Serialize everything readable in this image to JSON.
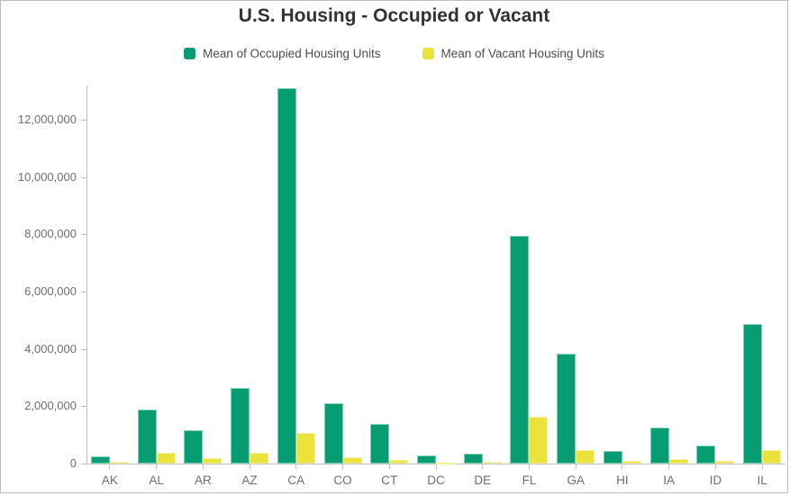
{
  "title": "U.S. Housing - Occupied or Vacant",
  "legend": [
    {
      "label": "Mean of Occupied Housing Units",
      "color": "#089c73"
    },
    {
      "label": "Mean of Vacant Housing Units",
      "color": "#ece23c"
    }
  ],
  "colors": {
    "occupied": "#089c73",
    "occupied_edge": "#7ed0b2",
    "vacant": "#ece23c",
    "vacant_edge": "#f5efa0",
    "axis_line": "#c0c0c0",
    "tick_mark": "#c0c0c0",
    "axis_label": "#6e6e6e",
    "title_text": "#323232",
    "legend_text": "#4c4c4c",
    "frame_border": "#bdbdbd"
  },
  "chart_data": {
    "type": "bar",
    "title": "U.S. Housing - Occupied or Vacant",
    "categories": [
      "AK",
      "AL",
      "AR",
      "AZ",
      "CA",
      "CO",
      "CT",
      "DC",
      "DE",
      "FL",
      "GA",
      "HI",
      "IA",
      "ID",
      "IL"
    ],
    "series": [
      {
        "name": "Mean of Occupied Housing Units",
        "color": "#089c73",
        "values": [
          240000,
          1870000,
          1150000,
          2630000,
          13100000,
          2090000,
          1370000,
          280000,
          330000,
          7950000,
          3820000,
          440000,
          1250000,
          620000,
          4860000
        ]
      },
      {
        "name": "Mean of Vacant Housing Units",
        "color": "#ece23c",
        "values": [
          65000,
          370000,
          185000,
          385000,
          1070000,
          210000,
          140000,
          35000,
          75000,
          1620000,
          465000,
          90000,
          150000,
          95000,
          470000
        ]
      }
    ],
    "xlabel": "",
    "ylabel": "",
    "ylim": [
      0,
      13200000
    ],
    "yticks": [
      0,
      2000000,
      4000000,
      6000000,
      8000000,
      10000000,
      12000000
    ],
    "grid": false,
    "legend_position": "top"
  }
}
